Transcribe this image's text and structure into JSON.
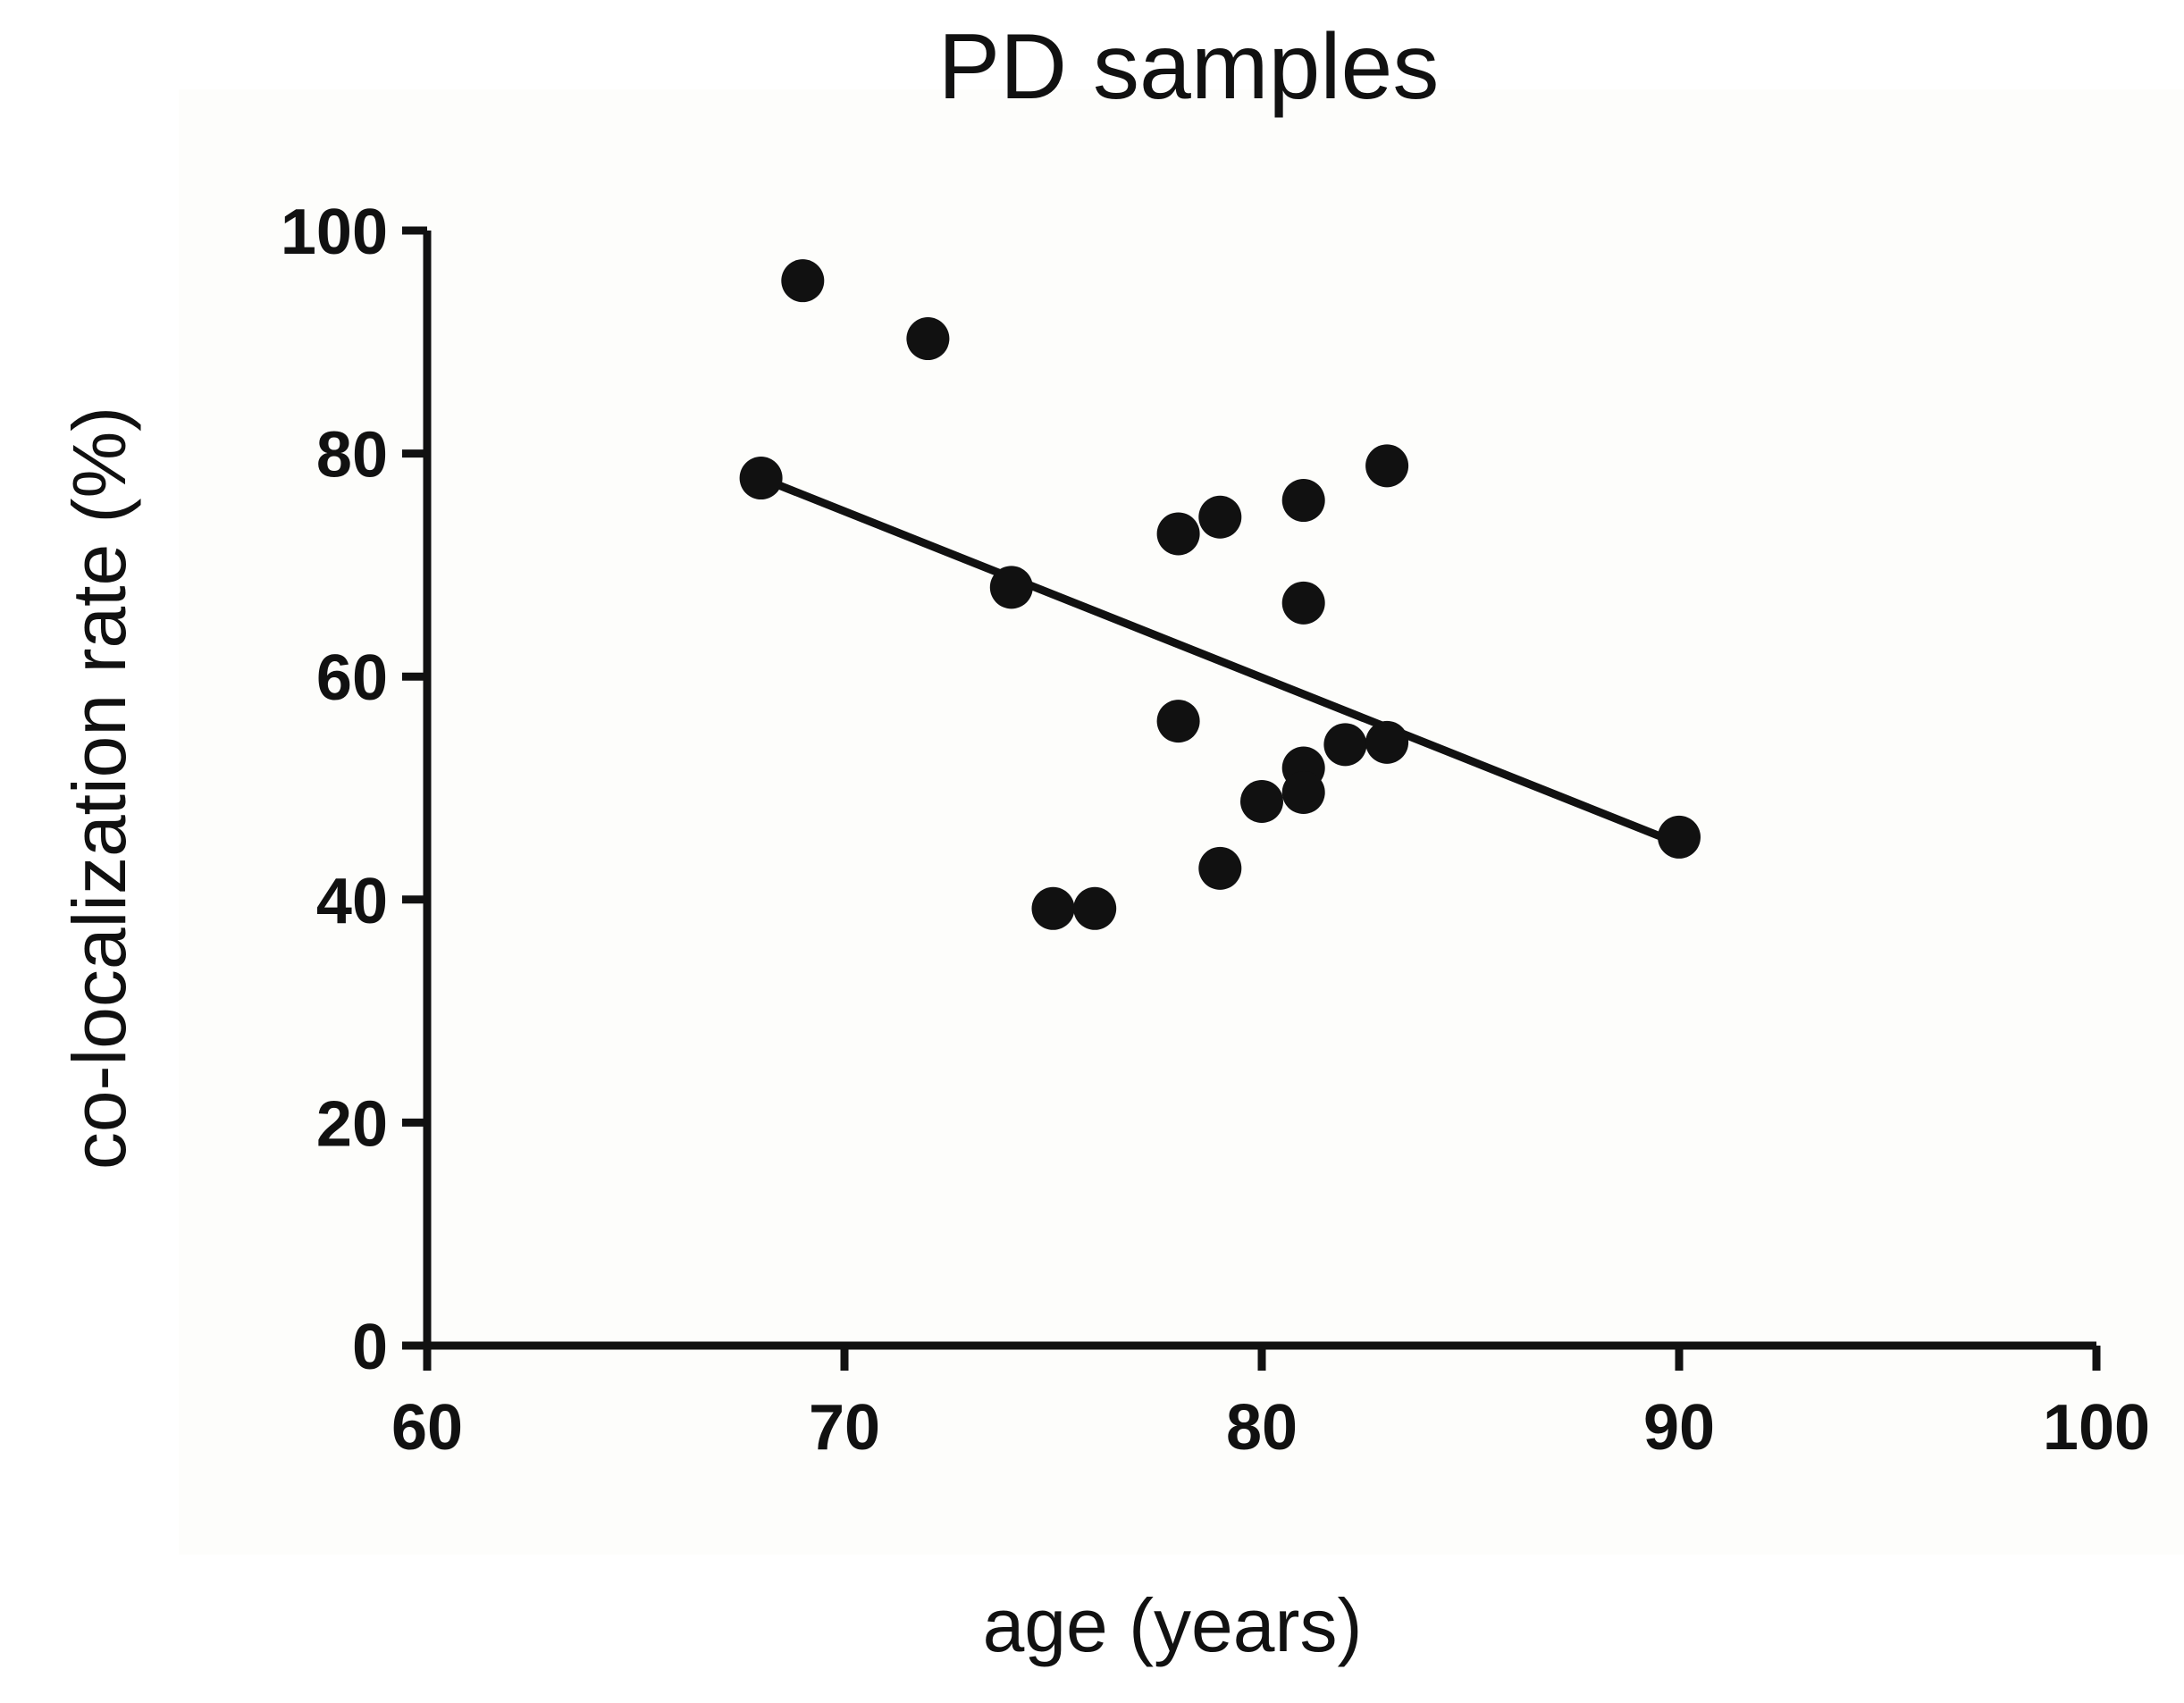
{
  "chart_data": {
    "type": "scatter",
    "title": "PD samples",
    "xlabel": "age (years)",
    "ylabel": "co-localization rate (%)",
    "xlim": [
      60,
      100
    ],
    "ylim": [
      0,
      100
    ],
    "xticks": [
      60,
      70,
      80,
      90,
      100
    ],
    "yticks": [
      0,
      20,
      40,
      60,
      80,
      100
    ],
    "grid": false,
    "series": [
      {
        "name": "PD samples",
        "points": [
          {
            "x": 68,
            "y": 77.8
          },
          {
            "x": 69,
            "y": 95.5
          },
          {
            "x": 72,
            "y": 90.3
          },
          {
            "x": 74,
            "y": 68.0
          },
          {
            "x": 75,
            "y": 39.2
          },
          {
            "x": 76,
            "y": 39.2
          },
          {
            "x": 78,
            "y": 72.8
          },
          {
            "x": 78,
            "y": 56.0
          },
          {
            "x": 79,
            "y": 74.3
          },
          {
            "x": 79,
            "y": 42.8
          },
          {
            "x": 80,
            "y": 48.8
          },
          {
            "x": 81,
            "y": 75.8
          },
          {
            "x": 81,
            "y": 66.6
          },
          {
            "x": 81,
            "y": 51.8
          },
          {
            "x": 81,
            "y": 49.6
          },
          {
            "x": 82,
            "y": 53.9
          },
          {
            "x": 83,
            "y": 78.9
          },
          {
            "x": 83,
            "y": 54.1
          },
          {
            "x": 90,
            "y": 45.6
          }
        ]
      }
    ],
    "fit_line": {
      "x": [
        68,
        90
      ],
      "y": [
        77.8,
        45.0
      ]
    }
  }
}
